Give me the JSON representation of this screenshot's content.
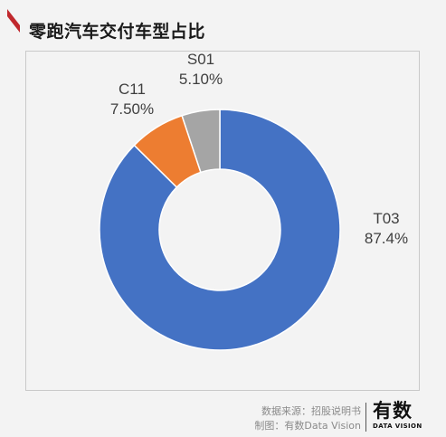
{
  "title": "零跑汽车交付车型占比",
  "chart_data": {
    "type": "pie",
    "variant": "donut",
    "title": "",
    "slices": [
      {
        "name": "T03",
        "value": 87.4,
        "label": "87.4%",
        "color": "#4472C4"
      },
      {
        "name": "C11",
        "value": 7.5,
        "label": "7.50%",
        "color": "#ED7D31"
      },
      {
        "name": "S01",
        "value": 5.1,
        "label": "5.10%",
        "color": "#A5A5A5"
      }
    ]
  },
  "footer": {
    "source": "数据来源：招股说明书",
    "credit": "制图：有数Data Vision",
    "logo_text": "有数",
    "logo_sub": "DATA VISION"
  }
}
